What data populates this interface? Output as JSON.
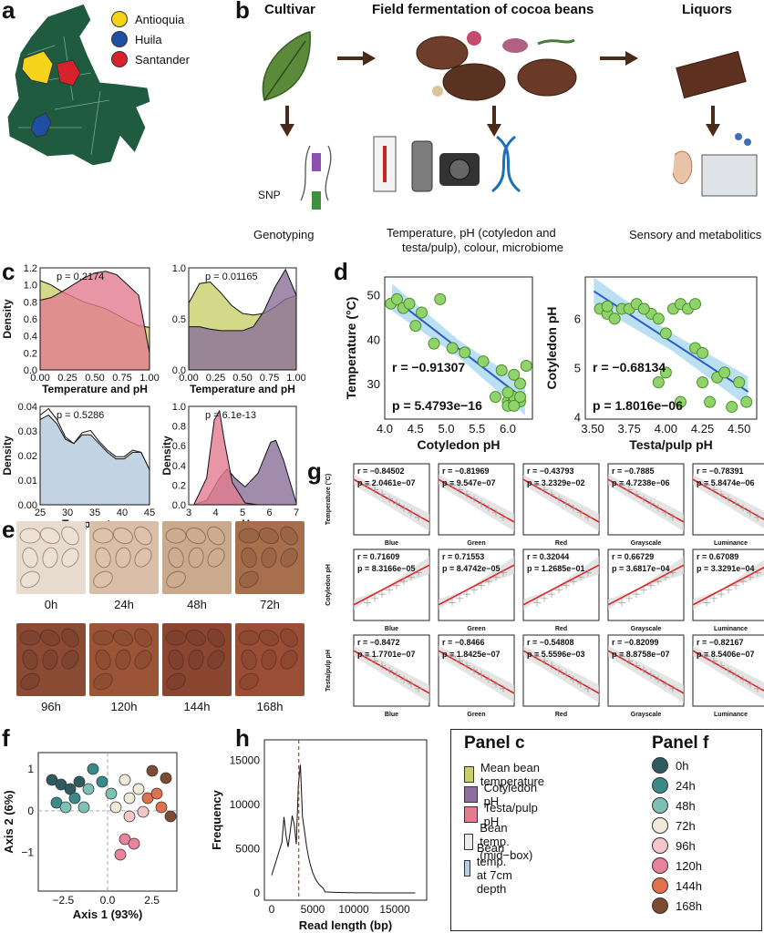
{
  "panels": {
    "a": "a",
    "b": "b",
    "c": "c",
    "d": "d",
    "e": "e",
    "f": "f",
    "g": "g",
    "h": "h"
  },
  "map_legend": [
    {
      "label": "Antioquia",
      "color": "#f5d31a"
    },
    {
      "label": "Huila",
      "color": "#1f4fa3"
    },
    {
      "label": "Santander",
      "color": "#d7222b"
    }
  ],
  "workflow": {
    "cultivar": "Cultivar",
    "field": "Field fermentation of cocoa beans",
    "liquors": "Liquors",
    "snp": "SNP",
    "genotyping": "Genotyping",
    "measure_line1": "Temperature, pH (cotyledon and",
    "measure_line2": "testa/pulp), colour, microbiome",
    "sensory": "Sensory and metabolitics"
  },
  "chart_data": [
    {
      "id": "c1",
      "type": "area",
      "xlabel": "Temperature and pH",
      "ylabel": "Density",
      "annotation": "p = 0.2174",
      "xticks": [
        "0.00",
        "0.25",
        "0.50",
        "0.75",
        "1.00"
      ],
      "yticks": [
        "0.0",
        "0.2",
        "0.4",
        "0.6",
        "0.8",
        "1.0",
        "1.2"
      ],
      "xlim": [
        0,
        1
      ],
      "ylim": [
        0,
        1.2
      ],
      "series": [
        {
          "color": "#c8cf6a",
          "x": [
            0,
            0.1,
            0.2,
            0.3,
            0.4,
            0.5,
            0.6,
            0.7,
            0.8,
            0.9,
            1.0
          ],
          "y": [
            1.05,
            1.0,
            0.92,
            0.86,
            0.8,
            0.76,
            0.72,
            0.65,
            0.58,
            0.52,
            0.5
          ]
        },
        {
          "color": "#e27c8f",
          "x": [
            0,
            0.1,
            0.2,
            0.3,
            0.4,
            0.5,
            0.6,
            0.7,
            0.8,
            0.9,
            1.0
          ],
          "y": [
            0.82,
            0.85,
            0.92,
            1.0,
            1.08,
            1.14,
            1.16,
            1.12,
            1.0,
            0.88,
            0.2
          ]
        }
      ]
    },
    {
      "id": "c2",
      "type": "area",
      "xlabel": "Temperature and pH",
      "ylabel": "",
      "annotation": "p = 0.01165",
      "xticks": [
        "0.00",
        "0.25",
        "0.50",
        "0.75",
        "1.00"
      ],
      "yticks": [
        "0.0",
        "0.5",
        "1.0"
      ],
      "xlim": [
        0,
        1
      ],
      "ylim": [
        0,
        1.3
      ],
      "series": [
        {
          "color": "#c8cf6a",
          "x": [
            0,
            0.1,
            0.2,
            0.3,
            0.4,
            0.5,
            0.6,
            0.7,
            0.8,
            0.9,
            1.0
          ],
          "y": [
            0.85,
            1.1,
            1.12,
            0.98,
            0.82,
            0.72,
            0.7,
            0.72,
            0.8,
            0.9,
            0.95
          ]
        },
        {
          "color": "#8a6f9a",
          "x": [
            0,
            0.1,
            0.2,
            0.3,
            0.4,
            0.5,
            0.6,
            0.7,
            0.8,
            0.9,
            1.0
          ],
          "y": [
            0.55,
            0.55,
            0.52,
            0.5,
            0.5,
            0.5,
            0.55,
            0.75,
            1.05,
            1.28,
            0.95
          ]
        }
      ]
    },
    {
      "id": "c3",
      "type": "area",
      "xlabel": "Temperature",
      "ylabel": "Density",
      "annotation": "p = 0.5286",
      "xticks": [
        "25",
        "30",
        "35",
        "40",
        "45"
      ],
      "yticks": [
        "0.00",
        "0.01",
        "0.02",
        "0.03",
        "0.04"
      ],
      "xlim": [
        24,
        50
      ],
      "ylim": [
        0,
        0.045
      ],
      "series": [
        {
          "color": "#ececec",
          "x": [
            24,
            26,
            28,
            30,
            32,
            34,
            36,
            38,
            40,
            42,
            44,
            46,
            48,
            50
          ],
          "y": [
            0.041,
            0.044,
            0.039,
            0.031,
            0.028,
            0.033,
            0.034,
            0.029,
            0.025,
            0.022,
            0.022,
            0.025,
            0.024,
            0.016
          ]
        },
        {
          "color": "#b7cde1",
          "x": [
            24,
            26,
            28,
            30,
            32,
            34,
            36,
            38,
            40,
            42,
            44,
            46,
            48,
            50
          ],
          "y": [
            0.039,
            0.041,
            0.037,
            0.03,
            0.028,
            0.032,
            0.032,
            0.028,
            0.024,
            0.021,
            0.021,
            0.024,
            0.024,
            0.016
          ]
        }
      ]
    },
    {
      "id": "c4",
      "type": "area",
      "xlabel": "pH",
      "ylabel": "Density",
      "annotation": "p = 6.1e-13",
      "xticks": [
        "3",
        "4",
        "5",
        "6",
        "7"
      ],
      "yticks": [
        "0.0",
        "0.2",
        "0.4",
        "0.6",
        "0.8",
        "1.0"
      ],
      "xlim": [
        2.8,
        7
      ],
      "ylim": [
        0,
        1.1
      ],
      "series": [
        {
          "color": "#8a6f9a",
          "x": [
            3,
            3.5,
            4,
            4.3,
            4.6,
            5,
            5.5,
            6,
            6.2,
            6.5,
            7
          ],
          "y": [
            0,
            0.05,
            0.3,
            0.4,
            0.3,
            0.2,
            0.35,
            0.7,
            0.72,
            0.5,
            0.02
          ]
        },
        {
          "color": "#e27c8f",
          "x": [
            3,
            3.5,
            3.8,
            4,
            4.2,
            4.5,
            5,
            5.5,
            6,
            6.5,
            7
          ],
          "y": [
            0,
            0.3,
            0.95,
            1.05,
            0.7,
            0.25,
            0.02,
            0,
            0,
            0,
            0
          ]
        }
      ]
    },
    {
      "id": "d1",
      "type": "scatter",
      "xlabel": "Cotyledon pH",
      "ylabel": "Temperature (°C)",
      "r": "r = −0.91307",
      "p": "p = 5.4793e−16",
      "xticks": [
        "4.0",
        "4.5",
        "5.0",
        "5.5",
        "6.0"
      ],
      "yticks": [
        "30",
        "40",
        "50"
      ],
      "xlim": [
        4,
        6.4
      ],
      "ylim": [
        22,
        54
      ],
      "x": [
        4.1,
        4.2,
        4.3,
        4.4,
        4.5,
        4.6,
        4.8,
        4.9,
        5.1,
        5.3,
        5.6,
        5.8,
        5.9,
        6.0,
        6.0,
        6.1,
        6.1,
        6.2,
        6.2,
        6.1,
        6.0,
        6.2,
        6.3,
        6.1
      ],
      "y": [
        48,
        49,
        47,
        48,
        43,
        46,
        39,
        49,
        38,
        37,
        35,
        27,
        33,
        26,
        25,
        26,
        27,
        26,
        30,
        25,
        28,
        27,
        34,
        32
      ]
    },
    {
      "id": "d2",
      "type": "scatter",
      "xlabel": "Testa/pulp pH",
      "ylabel": "Cotyledon pH",
      "r": "r = −0.68134",
      "p": "p = 1.8016e−06",
      "xticks": [
        "3.50",
        "3.75",
        "4.00",
        "4.25",
        "4.50"
      ],
      "yticks": [
        "4",
        "5",
        "6"
      ],
      "xlim": [
        3.45,
        4.62
      ],
      "ylim": [
        3.95,
        6.85
      ],
      "x": [
        3.55,
        3.6,
        3.6,
        3.7,
        3.75,
        3.8,
        3.85,
        3.9,
        3.95,
        4.0,
        4.05,
        4.1,
        4.15,
        4.2,
        4.2,
        4.25,
        4.25,
        4.3,
        4.35,
        4.4,
        4.45,
        4.5,
        4.55,
        4.0,
        3.95,
        4.1,
        3.65,
        3.85
      ],
      "y": [
        6.2,
        6.1,
        6.25,
        6.2,
        6.2,
        6.3,
        6.2,
        6.1,
        6.0,
        5.7,
        6.2,
        6.3,
        6.2,
        6.3,
        5.4,
        5.3,
        4.7,
        4.3,
        4.8,
        4.9,
        4.2,
        4.7,
        4.3,
        4.9,
        4.7,
        4.3,
        6.0,
        6.2
      ]
    }
  ],
  "g_grid": {
    "row_labels": [
      "Temperature (°C)",
      "Cotyledon pH",
      "Testa/pulp pH"
    ],
    "col_labels": [
      "Blue",
      "Green",
      "Red",
      "Grayscale",
      "Luminance"
    ],
    "cells": [
      [
        {
          "r": "r = −0.84502",
          "p": "p = 2.0461e−07"
        },
        {
          "r": "r = −0.81969",
          "p": "p = 9.547e−07"
        },
        {
          "r": "r = −0.43793",
          "p": "p = 3.2329e−02"
        },
        {
          "r": "r = −0.7885",
          "p": "p = 4.7238e−06"
        },
        {
          "r": "r = −0.78391",
          "p": "p = 5.8474e−06"
        }
      ],
      [
        {
          "r": "r = 0.71609",
          "p": "p = 8.3166e−05"
        },
        {
          "r": "r = 0.71553",
          "p": "p = 8.4742e−05"
        },
        {
          "r": "r = 0.32044",
          "p": "p = 1.2685e−01"
        },
        {
          "r": "r = 0.66729",
          "p": "p = 3.6817e−04"
        },
        {
          "r": "r = 0.67089",
          "p": "p = 3.3291e−04"
        }
      ],
      [
        {
          "r": "r = −0.8472",
          "p": "p = 1.7701e−07"
        },
        {
          "r": "r = −0.8466",
          "p": "p = 1.8425e−07"
        },
        {
          "r": "r = −0.54808",
          "p": "p = 5.5596e−03"
        },
        {
          "r": "r = −0.82099",
          "p": "p = 8.8758e−07"
        },
        {
          "r": "r = −0.82167",
          "p": "p = 8.5406e−07"
        }
      ]
    ]
  },
  "photos": {
    "labels": [
      "0h",
      "24h",
      "48h",
      "72h",
      "96h",
      "120h",
      "144h",
      "168h"
    ],
    "colors": [
      "#e8dcd0",
      "#d9bfa8",
      "#caa98c",
      "#a86f4c",
      "#8a4a33",
      "#9b5536",
      "#8b4632",
      "#9a4e35"
    ]
  },
  "pcoa": {
    "xlabel": "Axis 1 (93%)",
    "ylabel": "Axis 2 (6%)",
    "xticks": [
      "−2.5",
      "0.0",
      "2.5"
    ],
    "yticks": [
      "−1",
      "0",
      "1"
    ]
  },
  "hist": {
    "xlabel": "Read length (bp)",
    "ylabel": "Frequency",
    "xticks": [
      "0",
      "5000",
      "10000",
      "15000"
    ],
    "yticks": [
      "0",
      "5000",
      "10000",
      "15000"
    ]
  },
  "legend": {
    "panel_c_title": "Panel c",
    "panel_f_title": "Panel f",
    "panel_c": [
      {
        "label": "Mean bean temperature",
        "color": "#c8cf6a"
      },
      {
        "label": "Cotyledon pH",
        "color": "#8a6f9a"
      },
      {
        "label": "Testa/pulp pH",
        "color": "#e27c8f"
      },
      {
        "label": "Bean temp. (mid−box)",
        "color": "#ececec"
      },
      {
        "label": "Bean temp. at 7cm depth",
        "color": "#b7cde1"
      }
    ],
    "panel_f": [
      {
        "label": "0h",
        "color": "#2e5b60"
      },
      {
        "label": "24h",
        "color": "#3a8a89"
      },
      {
        "label": "48h",
        "color": "#7cc1b3"
      },
      {
        "label": "72h",
        "color": "#f1ead9"
      },
      {
        "label": "96h",
        "color": "#f4c6c9"
      },
      {
        "label": "120h",
        "color": "#e9829a"
      },
      {
        "label": "144h",
        "color": "#e0704e"
      },
      {
        "label": "168h",
        "color": "#7e4a33"
      }
    ]
  }
}
